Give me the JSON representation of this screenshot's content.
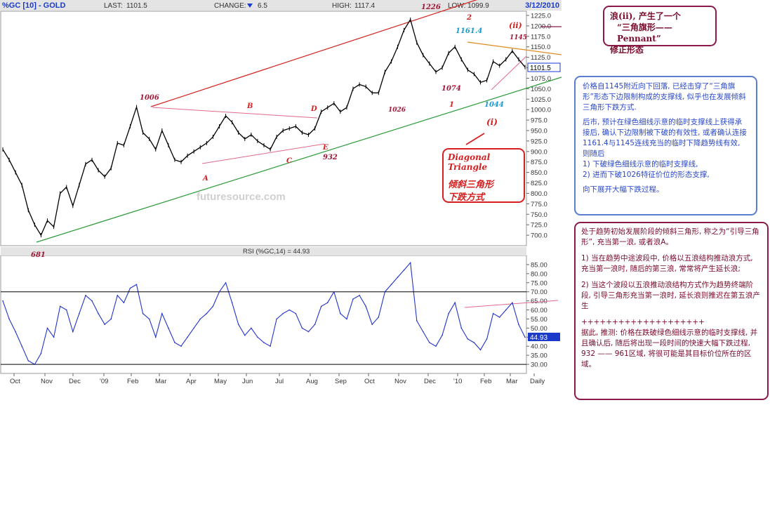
{
  "header": {
    "symbol": "%GC [10] - GOLD",
    "last_label": "LAST:",
    "last_value": "1101.5",
    "change_label": "CHANGE:",
    "change_value": "6.5",
    "high_label": "HIGH:",
    "high_value": "1117.4",
    "low_value": "LOW: 1099.9",
    "date": "3/12/2010"
  },
  "rsi_title": "RSI (%GC,14) = 44.93",
  "rsi_last": "44.93",
  "price_last": "1101.5",
  "watermark": "futuresource.com",
  "colors": {
    "price": "#000000",
    "rsi": "#2233cc",
    "red_line": "#d42020",
    "green_line": "#2a9a3a",
    "orange_line": "#e08a20",
    "pink_line": "#e06a8a",
    "wave_label": "#a01838",
    "cyan_label": "#1a9ad0",
    "axis_box": "#1a3acc"
  },
  "wave_labels": {
    "p681": "681",
    "p1006": "1006",
    "A": "A",
    "B": "B",
    "C": "C",
    "D": "D",
    "E": "E",
    "p932": "932",
    "p1026": "1026",
    "p1226": "1226",
    "p2": "2",
    "p1161": "1161.4",
    "ii": "(ii)",
    "p1145": "1145",
    "p1074": "1074",
    "p1": "1",
    "p1044": "1044",
    "i": "(i)"
  },
  "annotations": {
    "top": [
      "浪(ⅱ), 产生了一个",
      "“三角旗形——Pennant”",
      "修正形态"
    ],
    "diagonal_en": "Diagonal Triangle",
    "diagonal_cn1": "倾斜三角形",
    "diagonal_cn2": "下跌方式",
    "blue_p1": "价格自1145附近向下回落, 已经击穿了“三角旗形”形态下边限制构成的支撑线, 似乎也在发展倾斜三角形下跌方式.",
    "blue_p2": "后市, 预计在绿色细线示意的临时支撑线上获得承接后, 确认下边限制被下破的有效性, 或者确认连接1161.4与1145连线充当的临时下降趋势线有效, 则随后",
    "blue_p3": "1) 下破绿色细线示意的临时支撑线,",
    "blue_p4": "2) 进而下破1026特征价位的形态支撑,",
    "blue_p5": "向下展开大幅下跌过程。",
    "red_p1": "处于趋势初始发展阶段的倾斜三角形, 称之为“引导三角形”, 充当第一浪, 或者浪A。",
    "red_p2": "1) 当在趋势中途波段中, 价格以五浪结构推动浪方式, 充当第一浪时, 随后的第三浪, 常常将产生延长浪;",
    "red_p3": "2) 当这个波段以五浪推动浪结构方式作为趋势终端阶段, 引导三角形充当第一浪时, 延长浪则推迟在第五浪产生",
    "red_sep": "++++++++++++++++++++",
    "red_p4": "据此, 推测: 价格在跌破绿色细线示意的临时支撑线, 并且确认后, 随后将出现一段时间的快速大幅下跌过程, 932 —— 961区域, 将很可能是其目标价位所在的区域。"
  },
  "chart_data": {
    "type": "line",
    "title": "%GC [10] - GOLD",
    "x_ticks": [
      "Oct",
      "Nov",
      "Dec",
      "'09",
      "Feb",
      "Mar",
      "Apr",
      "May",
      "Jun",
      "Jul",
      "Aug",
      "Sep",
      "Oct",
      "Nov",
      "Dec",
      "'10",
      "Feb",
      "Mar",
      "Daily"
    ],
    "price": {
      "ylim": [
        675,
        1235
      ],
      "y_ticks": [
        700,
        725,
        750,
        775,
        800,
        825,
        850,
        875,
        900,
        925,
        950,
        975,
        1000,
        1025,
        1050,
        1075,
        1100,
        1125,
        1150,
        1175,
        1200,
        1225
      ],
      "x": [
        "2008-10-01",
        "2008-10-06",
        "2008-10-10",
        "2008-10-15",
        "2008-10-20",
        "2008-10-24",
        "2008-10-30",
        "2008-11-05",
        "2008-11-12",
        "2008-11-20",
        "2008-11-27",
        "2008-12-05",
        "2008-12-12",
        "2008-12-19",
        "2008-12-31",
        "2009-01-08",
        "2009-01-15",
        "2009-01-22",
        "2009-01-30",
        "2009-02-06",
        "2009-02-13",
        "2009-02-20",
        "2009-02-27",
        "2009-03-06",
        "2009-03-13",
        "2009-03-20",
        "2009-03-27",
        "2009-04-03",
        "2009-04-10",
        "2009-04-17",
        "2009-04-24",
        "2009-05-01",
        "2009-05-08",
        "2009-05-15",
        "2009-05-22",
        "2009-05-29",
        "2009-06-03",
        "2009-06-10",
        "2009-06-17",
        "2009-06-24",
        "2009-07-01",
        "2009-07-08",
        "2009-07-10",
        "2009-07-17",
        "2009-07-24",
        "2009-07-31",
        "2009-08-07",
        "2009-08-14",
        "2009-08-21",
        "2009-08-28",
        "2009-09-04",
        "2009-09-11",
        "2009-09-18",
        "2009-09-25",
        "2009-10-02",
        "2009-10-09",
        "2009-10-14",
        "2009-10-21",
        "2009-10-28",
        "2009-11-02",
        "2009-11-09",
        "2009-11-16",
        "2009-11-23",
        "2009-11-27",
        "2009-12-03",
        "2009-12-08",
        "2009-12-11",
        "2009-12-17",
        "2009-12-23",
        "2009-12-31",
        "2010-01-07",
        "2010-01-12",
        "2010-01-19",
        "2010-01-26",
        "2010-02-01",
        "2010-02-05",
        "2010-02-11",
        "2010-02-17",
        "2010-02-24",
        "2010-03-01",
        "2010-03-04",
        "2010-03-09",
        "2010-03-12"
      ],
      "values": [
        905,
        880,
        850,
        820,
        760,
        725,
        700,
        735,
        720,
        800,
        815,
        770,
        820,
        870,
        880,
        855,
        840,
        860,
        920,
        915,
        960,
        1006,
        945,
        930,
        905,
        950,
        915,
        880,
        875,
        890,
        900,
        910,
        920,
        935,
        960,
        985,
        970,
        945,
        930,
        940,
        925,
        915,
        905,
        935,
        950,
        955,
        960,
        945,
        940,
        955,
        995,
        1005,
        1015,
        995,
        1005,
        1050,
        1060,
        1055,
        1040,
        1040,
        1090,
        1115,
        1150,
        1190,
        1215,
        1160,
        1130,
        1110,
        1090,
        1100,
        1135,
        1150,
        1120,
        1095,
        1085,
        1065,
        1070,
        1115,
        1105,
        1120,
        1140,
        1120,
        1101.5
      ]
    },
    "rsi": {
      "name": "RSI (%GC,14)",
      "ylim": [
        25,
        90
      ],
      "y_ticks": [
        30,
        35,
        40,
        45,
        50,
        55,
        60,
        65,
        70,
        75,
        80,
        85
      ],
      "values": [
        65,
        55,
        48,
        40,
        32,
        30,
        36,
        50,
        45,
        62,
        60,
        48,
        58,
        68,
        65,
        58,
        52,
        55,
        68,
        64,
        72,
        74,
        58,
        55,
        45,
        58,
        50,
        42,
        40,
        45,
        50,
        55,
        58,
        62,
        70,
        75,
        64,
        52,
        46,
        50,
        45,
        42,
        40,
        55,
        58,
        60,
        58,
        50,
        48,
        52,
        62,
        64,
        70,
        58,
        55,
        66,
        68,
        62,
        52,
        56,
        70,
        74,
        78,
        82,
        86,
        54,
        48,
        42,
        40,
        46,
        58,
        64,
        50,
        44,
        42,
        38,
        44,
        58,
        56,
        60,
        64,
        52,
        44.93
      ]
    }
  }
}
